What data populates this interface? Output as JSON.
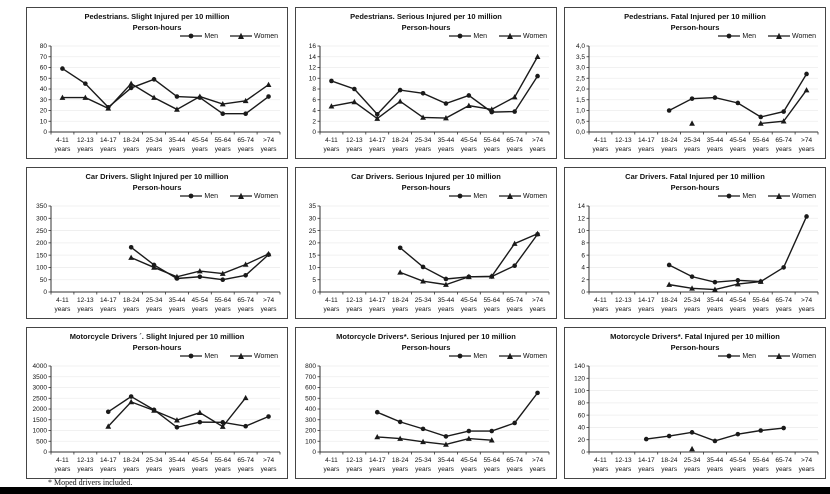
{
  "footnote": "* Moped drivers included.",
  "categories": [
    "4-11",
    "12-13",
    "14-17",
    "18-24",
    "25-34",
    "35-44",
    "45-54",
    "55-64",
    "65-74",
    ">74"
  ],
  "category_suffix": "years",
  "colors": {
    "line": "#1a1a1a",
    "axis": "#333333",
    "grid": "#ededed"
  },
  "legend_position": "top-right",
  "chart_data": [
    {
      "type": "line",
      "title": "Pedestrians. Slight Injured per 10 million",
      "subtitle": "Person-hours",
      "ylim": [
        0,
        80
      ],
      "ystep": 10,
      "decimals": 0,
      "grid": true,
      "series": [
        {
          "name": "Men",
          "marker": "circle",
          "values": [
            59,
            45,
            23,
            41,
            49,
            33,
            32,
            17,
            17,
            33
          ]
        },
        {
          "name": "Women",
          "marker": "triangle",
          "values": [
            32,
            32,
            22,
            45,
            32,
            21,
            33,
            26,
            29,
            44
          ]
        }
      ]
    },
    {
      "type": "line",
      "title": "Pedestrians. Serious Injured per 10 million",
      "subtitle": "Person-hours",
      "ylim": [
        0,
        16
      ],
      "ystep": 2,
      "decimals": 0,
      "grid": true,
      "series": [
        {
          "name": "Men",
          "marker": "circle",
          "values": [
            9.5,
            8,
            3.3,
            7.8,
            7.2,
            5.3,
            6.8,
            3.7,
            3.8,
            10.4
          ]
        },
        {
          "name": "Women",
          "marker": "triangle",
          "values": [
            4.8,
            5.6,
            2.5,
            5.7,
            2.7,
            2.6,
            4.9,
            4.2,
            6.5,
            14
          ]
        }
      ]
    },
    {
      "type": "line",
      "title": "Pedestrians. Fatal Injured per 10 million",
      "subtitle": "Person-hours",
      "ylim": [
        0,
        4
      ],
      "ystep": 0.5,
      "decimals": 1,
      "decimal_comma": true,
      "grid": true,
      "series": [
        {
          "name": "Men",
          "marker": "circle",
          "values": [
            null,
            null,
            null,
            1.0,
            1.55,
            1.6,
            1.35,
            0.7,
            0.95,
            2.7
          ]
        },
        {
          "name": "Women",
          "marker": "triangle",
          "values": [
            null,
            null,
            null,
            null,
            0.4,
            null,
            null,
            0.4,
            0.5,
            1.95
          ]
        }
      ]
    },
    {
      "type": "line",
      "title": "Car Drivers. Slight Injured per 10 million",
      "subtitle": "Person-hours",
      "ylim": [
        0,
        350
      ],
      "ystep": 50,
      "decimals": 0,
      "grid": true,
      "series": [
        {
          "name": "Men",
          "marker": "circle",
          "values": [
            null,
            null,
            null,
            182,
            110,
            55,
            62,
            50,
            68,
            152
          ]
        },
        {
          "name": "Women",
          "marker": "triangle",
          "values": [
            null,
            null,
            null,
            140,
            100,
            62,
            85,
            75,
            112,
            155
          ]
        }
      ]
    },
    {
      "type": "line",
      "title": "Car Drivers. Serious Injured per 10 million",
      "subtitle": "Person-hours",
      "ylim": [
        0,
        35
      ],
      "ystep": 5,
      "decimals": 0,
      "grid": true,
      "series": [
        {
          "name": "Men",
          "marker": "circle",
          "values": [
            null,
            null,
            null,
            18,
            10.2,
            5.3,
            6.2,
            6.3,
            10.7,
            23.5
          ]
        },
        {
          "name": "Women",
          "marker": "triangle",
          "values": [
            null,
            null,
            null,
            8,
            4.4,
            3,
            6.2,
            6.4,
            19.7,
            23.7
          ]
        }
      ]
    },
    {
      "type": "line",
      "title": "Car Drivers. Fatal Injured per 10 million",
      "subtitle": "Person-hours",
      "ylim": [
        0,
        14
      ],
      "ystep": 2,
      "decimals": 0,
      "grid": true,
      "series": [
        {
          "name": "Men",
          "marker": "circle",
          "values": [
            null,
            null,
            null,
            4.4,
            2.5,
            1.6,
            1.9,
            1.7,
            4.0,
            12.3
          ]
        },
        {
          "name": "Women",
          "marker": "triangle",
          "values": [
            null,
            null,
            null,
            1.2,
            0.6,
            0.4,
            1.3,
            1.7,
            null,
            null
          ]
        }
      ]
    },
    {
      "type": "line",
      "title": "Motorcycle Drivers ´. Slight Injured per 10 million",
      "subtitle": "Person-hours",
      "ylim": [
        0,
        4000
      ],
      "ystep": 500,
      "decimals": 0,
      "grid": true,
      "series": [
        {
          "name": "Men",
          "marker": "circle",
          "values": [
            null,
            null,
            1870,
            2580,
            1960,
            1150,
            1390,
            1380,
            1200,
            1650
          ]
        },
        {
          "name": "Women",
          "marker": "triangle",
          "values": [
            null,
            null,
            1190,
            2330,
            1930,
            1480,
            1830,
            1180,
            2520,
            null
          ]
        }
      ]
    },
    {
      "type": "line",
      "title": "Motorcycle Drivers*. Serious Injured per 10 million",
      "subtitle": "Person-hours",
      "ylim": [
        0,
        800
      ],
      "ystep": 100,
      "decimals": 0,
      "grid": true,
      "series": [
        {
          "name": "Men",
          "marker": "circle",
          "values": [
            null,
            null,
            370,
            280,
            215,
            145,
            195,
            195,
            270,
            550
          ]
        },
        {
          "name": "Women",
          "marker": "triangle",
          "values": [
            null,
            null,
            140,
            125,
            95,
            70,
            125,
            110,
            null,
            null
          ]
        }
      ]
    },
    {
      "type": "line",
      "title": "Motorcycle Drivers*. Fatal Injured per 10 million",
      "subtitle": "Person-hours",
      "ylim": [
        0,
        140
      ],
      "ystep": 20,
      "decimals": 0,
      "grid": true,
      "series": [
        {
          "name": "Men",
          "marker": "circle",
          "values": [
            null,
            null,
            21,
            26,
            32,
            18,
            29,
            35,
            39,
            null
          ]
        },
        {
          "name": "Women",
          "marker": "triangle",
          "values": [
            null,
            null,
            null,
            null,
            5,
            null,
            null,
            null,
            null,
            null
          ]
        }
      ]
    }
  ]
}
